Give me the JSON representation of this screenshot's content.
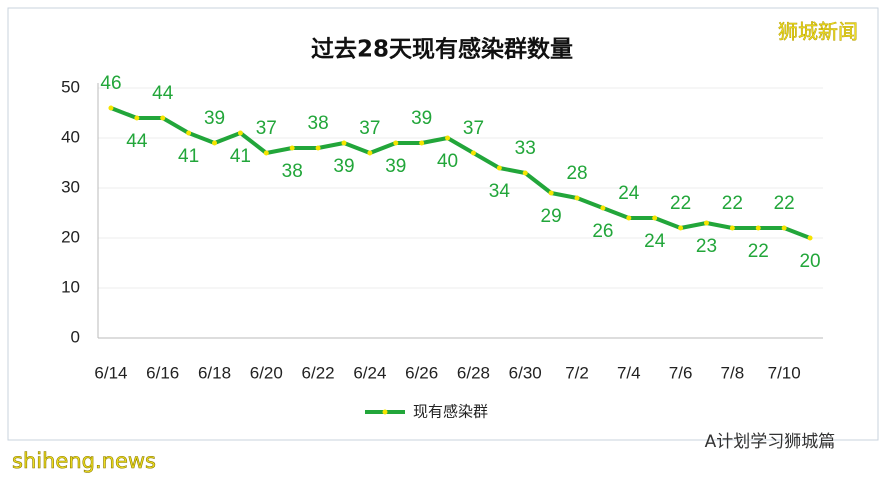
{
  "chart_data": {
    "type": "line",
    "title": "过去28天现有感染群数量",
    "categories": [
      "6/14",
      null,
      "6/16",
      null,
      "6/18",
      null,
      "6/20",
      null,
      "6/22",
      null,
      "6/24",
      null,
      "6/26",
      null,
      "6/28",
      null,
      "6/30",
      null,
      "7/2",
      null,
      "7/4",
      null,
      "7/6",
      null,
      "7/8",
      null,
      "7/10",
      null
    ],
    "series": [
      {
        "name": "现有感染群",
        "color": "#22a63a",
        "marker_color": "#f5e400",
        "values": [
          46,
          44,
          44,
          41,
          39,
          41,
          37,
          38,
          38,
          39,
          37,
          39,
          39,
          40,
          37,
          34,
          33,
          29,
          28,
          26,
          24,
          24,
          22,
          23,
          22,
          22,
          22,
          20
        ]
      }
    ],
    "ylim": [
      0,
      50
    ],
    "yticks": [
      0,
      10,
      20,
      30,
      40,
      50
    ],
    "grid": true,
    "legend": "bottom"
  },
  "watermarks": {
    "top_right": "狮城新闻",
    "bottom_left": "shiheng.news",
    "bottom_right": "A计划学习狮城篇"
  }
}
